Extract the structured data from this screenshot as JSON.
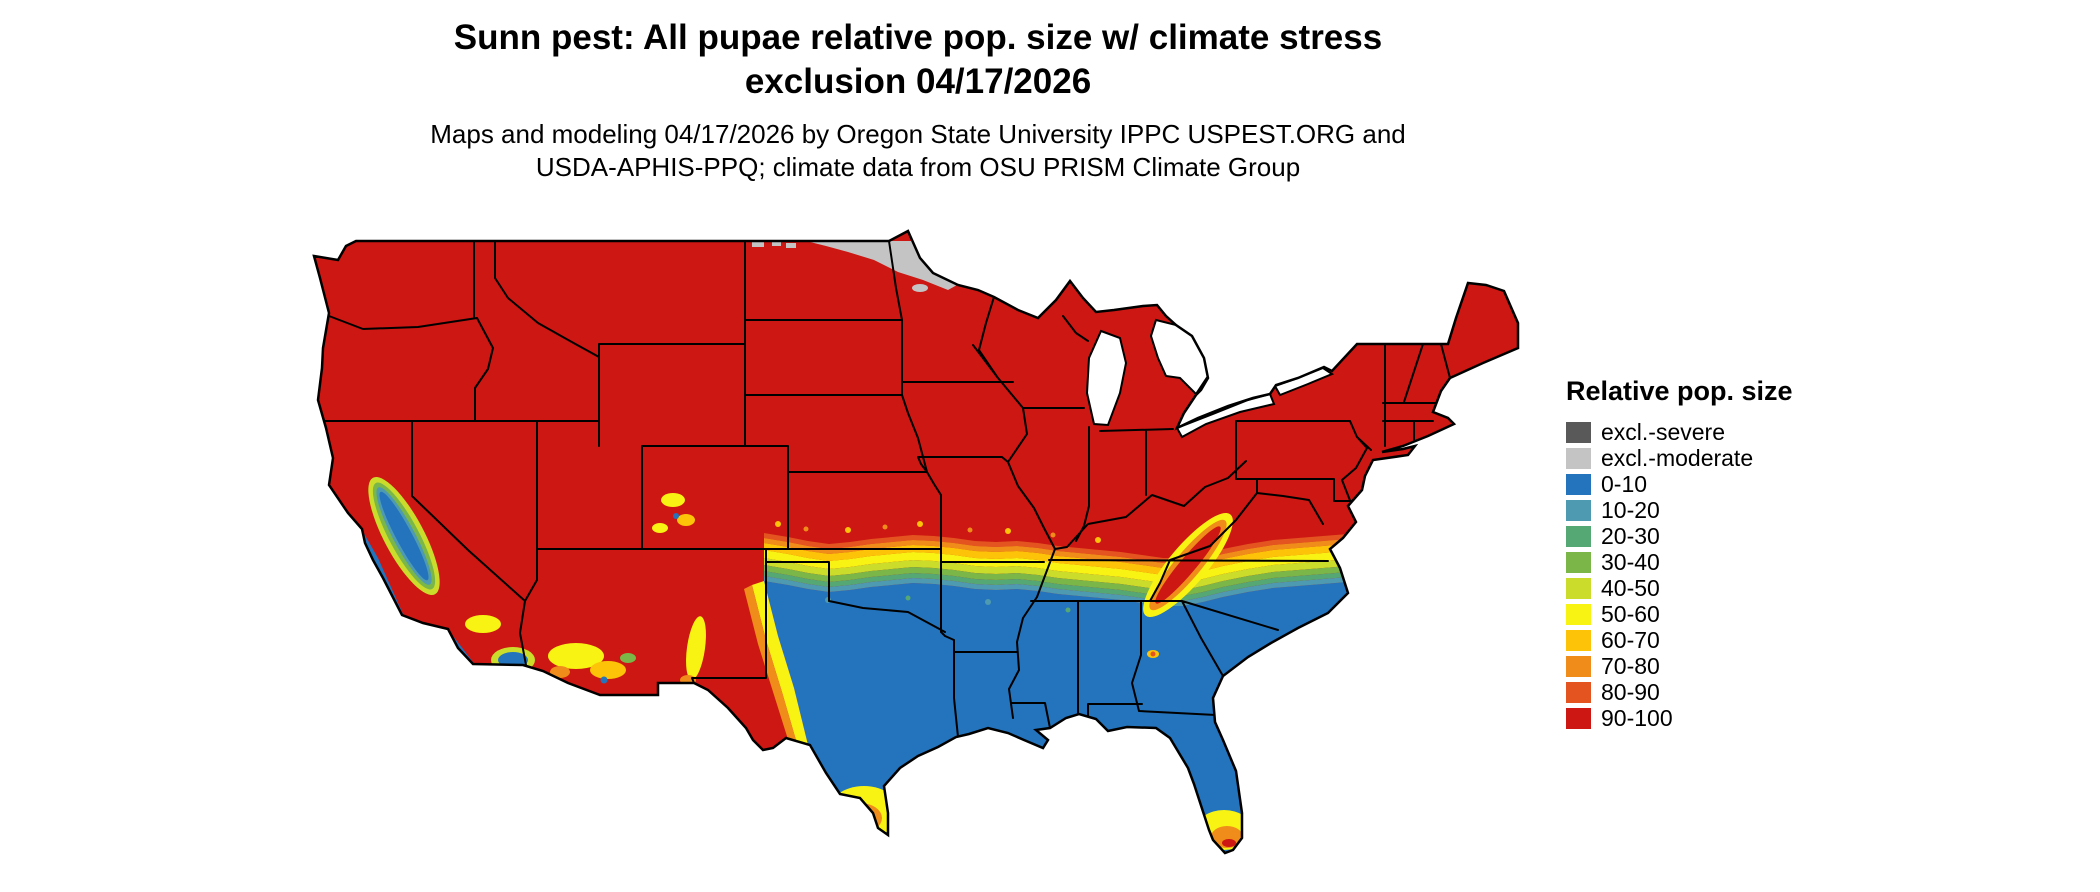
{
  "title": {
    "line1": "Sunn pest: All pupae relative pop. size w/ climate stress",
    "line2": "exclusion 04/17/2026"
  },
  "subtitle": {
    "line1": "Maps and modeling 04/17/2026 by Oregon State University IPPC USPEST.ORG and",
    "line2": "USDA-APHIS-PPQ; climate data from OSU PRISM Climate Group"
  },
  "legend": {
    "title": "Relative pop. size",
    "items": [
      {
        "key": "excl-severe",
        "label": "excl.-severe",
        "color": "#595959"
      },
      {
        "key": "excl-moderate",
        "label": "excl.-moderate",
        "color": "#c4c4c4"
      },
      {
        "key": "0-10",
        "label": "0-10",
        "color": "#2374bd"
      },
      {
        "key": "10-20",
        "label": "10-20",
        "color": "#4e9ab0"
      },
      {
        "key": "20-30",
        "label": "20-30",
        "color": "#55a873"
      },
      {
        "key": "30-40",
        "label": "30-40",
        "color": "#7ab648"
      },
      {
        "key": "40-50",
        "label": "40-50",
        "color": "#cbdd2a"
      },
      {
        "key": "50-60",
        "label": "50-60",
        "color": "#f8f313"
      },
      {
        "key": "60-70",
        "label": "60-70",
        "color": "#fcc308"
      },
      {
        "key": "70-80",
        "label": "70-80",
        "color": "#ef8c1a"
      },
      {
        "key": "80-90",
        "label": "80-90",
        "color": "#e35420"
      },
      {
        "key": "90-100",
        "label": "90-100",
        "color": "#cd1712"
      }
    ]
  }
}
